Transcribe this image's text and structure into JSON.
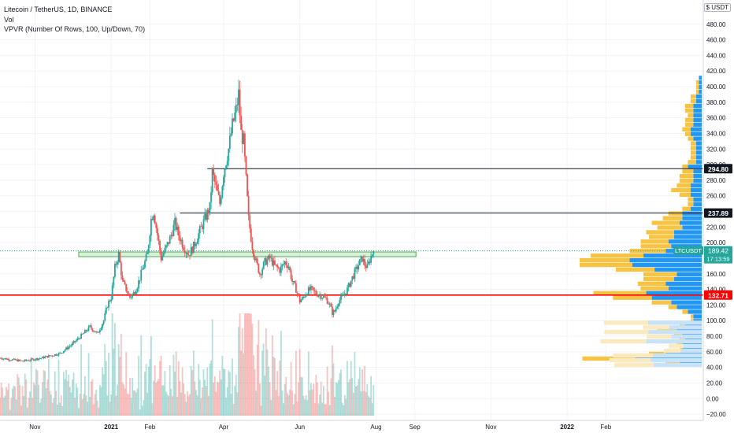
{
  "header": {
    "symbol_line": "Litecoin / TetherUS, 1D, BINANCE",
    "volume_label": "Vol",
    "vpvr_label": "VPVR (Number Of Rows, 100, Up/Down, 70)",
    "currency": "USDT",
    "currency_menu": "$"
  },
  "colors": {
    "up": "#26a69a",
    "down": "#ef5350",
    "vp_up": "#2196f3",
    "vp_down": "#f6c343",
    "vp_faded_up": "#c8e2f7",
    "vp_faded_down": "#fbe9c0",
    "grid": "#f0f3fa",
    "red_line": "#ff0000",
    "zone": "#4caf50"
  },
  "chart_data": {
    "type": "candlestick",
    "y_axis": {
      "ticks": [
        480,
        460,
        440,
        420,
        400,
        380,
        360,
        340,
        320,
        300,
        280,
        260,
        240,
        220,
        200,
        180,
        160,
        140,
        120,
        100,
        80,
        60,
        40,
        20,
        0,
        -20
      ],
      "tick_labels": [
        "480.00",
        "460.00",
        "440.00",
        "420.00",
        "400.00",
        "380.00",
        "360.00",
        "340.00",
        "320.00",
        "300.00",
        "280.00",
        "260.00",
        "240.00",
        "220.00",
        "200.00",
        "180.00",
        "160.00",
        "140.00",
        "120.00",
        "100.00",
        "80.00",
        "60.00",
        "40.00",
        "20.00",
        "0.00",
        "−20.00"
      ],
      "range": [
        -27,
        500
      ]
    },
    "x_axis": {
      "labels": [
        "Nov",
        "2021",
        "Feb",
        "Apr",
        "Jun",
        "Aug",
        "Sep",
        "Nov",
        "2022",
        "Feb"
      ],
      "label_days": [
        0,
        61,
        92,
        151,
        212,
        273,
        304,
        365,
        426,
        457
      ],
      "range_days": [
        -28,
        535
      ],
      "start_date": "2020-11-01"
    },
    "price_anchors": [
      [
        -28,
        52
      ],
      [
        -10,
        48
      ],
      [
        5,
        52
      ],
      [
        20,
        58
      ],
      [
        30,
        70
      ],
      [
        38,
        82
      ],
      [
        44,
        92
      ],
      [
        50,
        83
      ],
      [
        55,
        100
      ],
      [
        58,
        120
      ],
      [
        61,
        130
      ],
      [
        64,
        168
      ],
      [
        67,
        185
      ],
      [
        70,
        150
      ],
      [
        73,
        140
      ],
      [
        76,
        130
      ],
      [
        79,
        135
      ],
      [
        82,
        145
      ],
      [
        86,
        165
      ],
      [
        90,
        185
      ],
      [
        93,
        230
      ],
      [
        95,
        240
      ],
      [
        98,
        210
      ],
      [
        101,
        180
      ],
      [
        104,
        190
      ],
      [
        108,
        205
      ],
      [
        112,
        225
      ],
      [
        115,
        210
      ],
      [
        119,
        195
      ],
      [
        123,
        185
      ],
      [
        127,
        195
      ],
      [
        132,
        215
      ],
      [
        136,
        230
      ],
      [
        140,
        245
      ],
      [
        142,
        290
      ],
      [
        145,
        270
      ],
      [
        148,
        250
      ],
      [
        151,
        290
      ],
      [
        155,
        320
      ],
      [
        158,
        350
      ],
      [
        161,
        370
      ],
      [
        163,
        390
      ],
      [
        165,
        340
      ],
      [
        167,
        330
      ],
      [
        169,
        280
      ],
      [
        171,
        230
      ],
      [
        174,
        195
      ],
      [
        177,
        175
      ],
      [
        180,
        160
      ],
      [
        184,
        175
      ],
      [
        188,
        180
      ],
      [
        192,
        170
      ],
      [
        196,
        165
      ],
      [
        200,
        175
      ],
      [
        203,
        170
      ],
      [
        206,
        150
      ],
      [
        209,
        140
      ],
      [
        212,
        125
      ],
      [
        215,
        130
      ],
      [
        218,
        138
      ],
      [
        221,
        140
      ],
      [
        225,
        135
      ],
      [
        229,
        132
      ],
      [
        233,
        128
      ],
      [
        236,
        120
      ],
      [
        238,
        110
      ],
      [
        240,
        112
      ],
      [
        243,
        125
      ],
      [
        246,
        130
      ],
      [
        250,
        140
      ],
      [
        254,
        155
      ],
      [
        257,
        165
      ],
      [
        260,
        175
      ],
      [
        262,
        180
      ],
      [
        264,
        172
      ],
      [
        266,
        168
      ],
      [
        268,
        178
      ],
      [
        270,
        186
      ],
      [
        271,
        189.42
      ]
    ],
    "last_price": 189.42,
    "symbol_tag": "LTCUSDT",
    "price_label": "189.42",
    "countdown": "17:13:59",
    "levels": [
      {
        "value": 294.8,
        "label": "294.80",
        "start_day": 138,
        "color": "#131722"
      },
      {
        "value": 237.89,
        "label": "237.89",
        "start_day": 116,
        "color": "#131722"
      },
      {
        "value": 132.71,
        "label": "132.71",
        "start_day": -28,
        "color": "#ff0000"
      }
    ],
    "zone": {
      "low": 182,
      "high": 188,
      "start_day": 35,
      "end_day": 305
    },
    "volume_profile": {
      "visible_range": [
        0,
        271
      ],
      "extended_range_faded": true
    }
  }
}
